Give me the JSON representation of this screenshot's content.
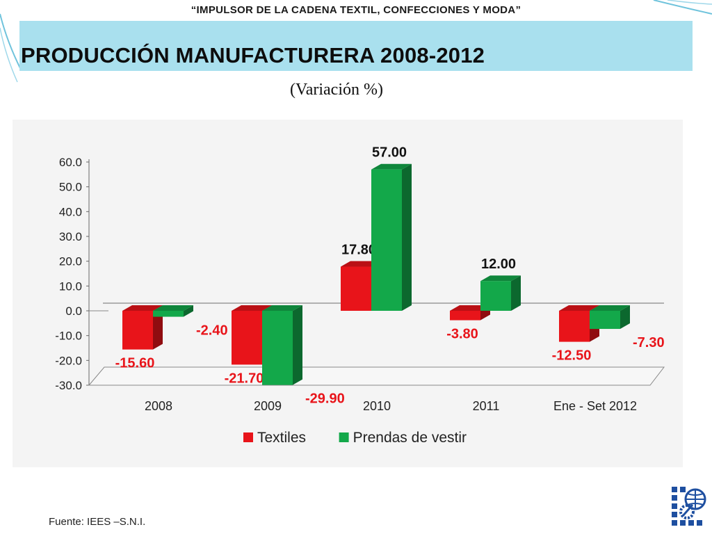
{
  "header": {
    "banner": "“IMPULSOR DE LA CADENA TEXTIL, CONFECCIONES Y MODA”",
    "title": "PRODUCCIÓN MANUFACTURERA 2008-2012",
    "subtitle": "(Variación %)"
  },
  "source": "Fuente: IEES –S.N.I.",
  "colors": {
    "title_box": "#a9e0ee",
    "textiles": "#e8141a",
    "prendas": "#13a84a",
    "label_red": "#e8141a"
  },
  "icons": {
    "logo": "globe-gear-emblem-icon"
  },
  "chart_data": {
    "type": "bar",
    "categories": [
      "2008",
      "2009",
      "2010",
      "2011",
      "Ene - Set 2012"
    ],
    "series": [
      {
        "name": "Textiles",
        "values": [
          -15.6,
          -21.7,
          17.8,
          -3.8,
          -12.5
        ],
        "labels": [
          "-15.60",
          "-21.70",
          "17.80",
          "-3.80",
          "-12.50"
        ]
      },
      {
        "name": "Prendas de vestir",
        "values": [
          -2.4,
          -29.9,
          57.0,
          12.0,
          -7.3
        ],
        "labels": [
          "-2.40",
          "-29.90",
          "57.00",
          "12.00",
          "-7.30"
        ]
      }
    ],
    "ylim": [
      -30,
      60
    ],
    "yticks": [
      60,
      50,
      40,
      30,
      20,
      10,
      0,
      -10,
      -20,
      -30
    ],
    "ytick_labels": [
      "60.0",
      "50.0",
      "40.0",
      "30.0",
      "20.0",
      "10.0",
      "0.0",
      "-10.0",
      "-20.0",
      "-30.0"
    ],
    "legend_position": "bottom",
    "grid": false,
    "style": "3d-clustered-column"
  }
}
